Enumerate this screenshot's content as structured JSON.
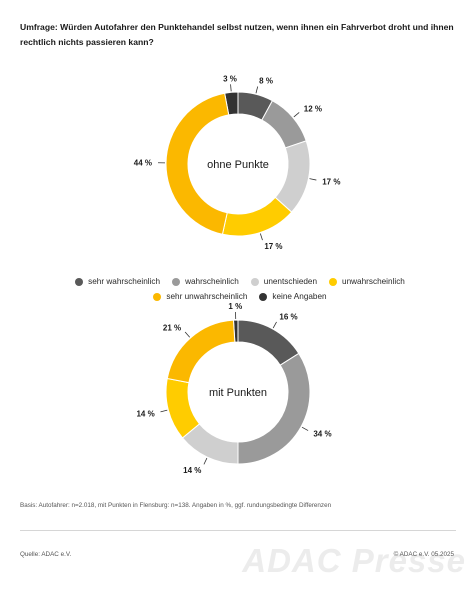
{
  "header": {
    "title": "Umfrage: Würden Autofahrer den Punktehandel selbst nutzen, wenn ihnen ein Fahrverbot droht und ihnen rechtlich nichts passieren kann?"
  },
  "legend": {
    "items": [
      {
        "label": "sehr wahrscheinlich",
        "color": "#595959"
      },
      {
        "label": "wahrscheinlich",
        "color": "#9a9a9a"
      },
      {
        "label": "unentschieden",
        "color": "#cfcfcf"
      },
      {
        "label": "unwahrscheinlich",
        "color": "#ffcc00"
      },
      {
        "label": "sehr unwahrscheinlich",
        "color": "#fbb800"
      },
      {
        "label": "keine Angaben",
        "color": "#333333"
      }
    ]
  },
  "chart_data": [
    {
      "type": "pie",
      "center_label": "ohne Punkte",
      "categories": [
        "sehr wahrscheinlich",
        "wahrscheinlich",
        "unentschieden",
        "unwahrscheinlich",
        "sehr unwahrscheinlich",
        "keine Angaben"
      ],
      "values": [
        8,
        12,
        17,
        17,
        44,
        3
      ],
      "value_labels": [
        "8 %",
        "12 %",
        "17 %",
        "17 %",
        "44 %",
        "3 %"
      ]
    },
    {
      "type": "pie",
      "center_label": "mit Punkten",
      "categories": [
        "sehr wahrscheinlich",
        "wahrscheinlich",
        "unentschieden",
        "unwahrscheinlich",
        "sehr unwahrscheinlich",
        "keine Angaben"
      ],
      "values": [
        16,
        34,
        14,
        14,
        21,
        1
      ],
      "value_labels": [
        "16 %",
        "34 %",
        "14 %",
        "14 %",
        "21 %",
        "1 %"
      ]
    }
  ],
  "footer": {
    "basis": "Basis: Autofahrer: n=2.018, mit Punkten in Flensburg: n=138. Angaben in %, ggf. rundungsbedingte Differenzen",
    "source": "Quelle: ADAC e.V.",
    "copyright": "© ADAC e.V. 05.2025",
    "watermark": "ADAC Presse"
  }
}
